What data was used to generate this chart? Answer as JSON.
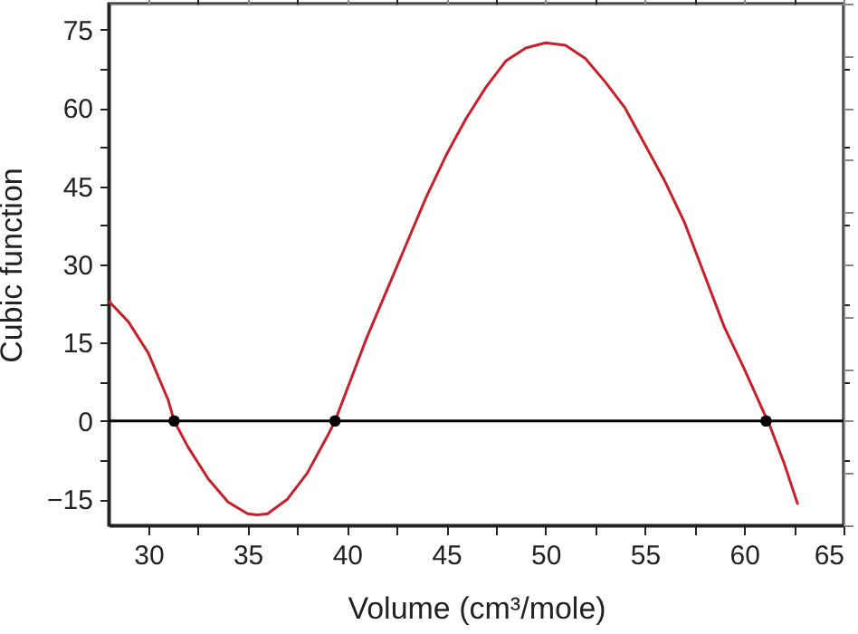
{
  "chart_data": {
    "type": "line",
    "xlabel": "Volume (cm³/mole)",
    "ylabel": "Cubic function",
    "xlim": [
      28,
      65
    ],
    "ylim": [
      -20,
      80
    ],
    "xticks": [
      30,
      {
        "value": 32.5,
        "label": null
      },
      35,
      {
        "value": 37.5,
        "label": null
      },
      40,
      {
        "value": 42.5,
        "label": null
      },
      45,
      {
        "value": 47.5,
        "label": null
      },
      50,
      {
        "value": 52.5,
        "label": null
      },
      55,
      {
        "value": 57.5,
        "label": null
      },
      60,
      {
        "value": 62.5,
        "label": null
      },
      65
    ],
    "yticks": [
      -15,
      {
        "value": -7.5,
        "label": null
      },
      0,
      {
        "value": 7.5,
        "label": null
      },
      15,
      {
        "value": 22.5,
        "label": null
      },
      30,
      {
        "value": 37.5,
        "label": null
      },
      45,
      {
        "value": 52.5,
        "label": null
      },
      60,
      {
        "value": 67.5,
        "label": null
      },
      75
    ],
    "grid": false,
    "ref_lines": [
      {
        "axis": "y",
        "value": 0,
        "color": "#000000"
      }
    ],
    "series": [
      {
        "type": "line",
        "color": "#c8202a",
        "marker": "none",
        "x": [
          28,
          29,
          30,
          31,
          31.3,
          32,
          33,
          34,
          35,
          35.5,
          36,
          37,
          38,
          39,
          39.4,
          40,
          41,
          42,
          43,
          44,
          45,
          46,
          47,
          48,
          49,
          50,
          51,
          52,
          53,
          54,
          55,
          56,
          57,
          58,
          59,
          60,
          61,
          61.2,
          62,
          62.7
        ],
        "values": [
          23,
          19,
          13,
          4,
          0,
          -5,
          -11,
          -15.5,
          -17.8,
          -18,
          -17.8,
          -15,
          -10,
          -3,
          0,
          6,
          16,
          25,
          34,
          43,
          51,
          58,
          64,
          69,
          71.5,
          72.5,
          72,
          69.5,
          65,
          60,
          53,
          46,
          38,
          28,
          18,
          10,
          1.5,
          0,
          -8,
          -16
        ]
      },
      {
        "type": "scatter",
        "color": "#000000",
        "marker": "circle",
        "x": [
          31.3,
          39.4,
          61.1
        ],
        "values": [
          0,
          0,
          0
        ]
      }
    ]
  }
}
